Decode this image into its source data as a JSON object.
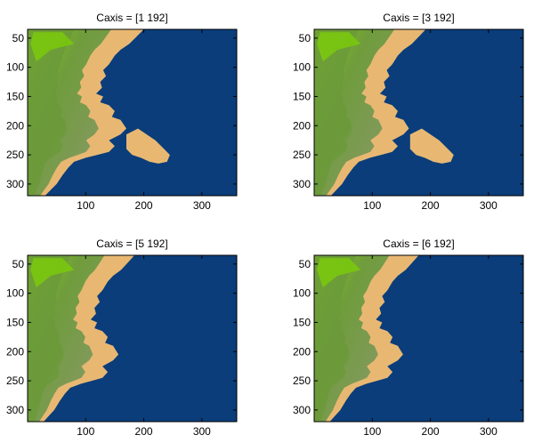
{
  "chart_data": [
    {
      "type": "heatmap",
      "title": "Caxis = [1 192]",
      "caxis": [
        1,
        192
      ],
      "xlim": [
        0,
        360
      ],
      "ylim": [
        320,
        35
      ],
      "xticks": [
        100,
        200,
        300
      ],
      "yticks": [
        50,
        100,
        150,
        200,
        250,
        300
      ],
      "colormap": [
        "#0a3d7a",
        "#e8b873",
        "#6b9a3a",
        "#7ac80e"
      ]
    },
    {
      "type": "heatmap",
      "title": "Caxis = [3 192]",
      "caxis": [
        3,
        192
      ],
      "xlim": [
        0,
        360
      ],
      "ylim": [
        320,
        35
      ],
      "xticks": [
        100,
        200,
        300
      ],
      "yticks": [
        50,
        100,
        150,
        200,
        250,
        300
      ],
      "colormap": [
        "#0a3d7a",
        "#e8b873",
        "#6b9a3a",
        "#7ac80e"
      ]
    },
    {
      "type": "heatmap",
      "title": "Caxis = [5 192]",
      "caxis": [
        5,
        192
      ],
      "xlim": [
        0,
        360
      ],
      "ylim": [
        320,
        35
      ],
      "xticks": [
        100,
        200,
        300
      ],
      "yticks": [
        50,
        100,
        150,
        200,
        250,
        300
      ],
      "colormap": [
        "#0a3d7a",
        "#e8b873",
        "#6b9a3a",
        "#7ac80e"
      ]
    },
    {
      "type": "heatmap",
      "title": "Caxis = [6 192]",
      "caxis": [
        6,
        192
      ],
      "xlim": [
        0,
        360
      ],
      "ylim": [
        320,
        35
      ],
      "xticks": [
        100,
        200,
        300
      ],
      "yticks": [
        50,
        100,
        150,
        200,
        250,
        300
      ],
      "colormap": [
        "#0a3d7a",
        "#e8b873",
        "#6b9a3a",
        "#7ac80e"
      ]
    }
  ]
}
